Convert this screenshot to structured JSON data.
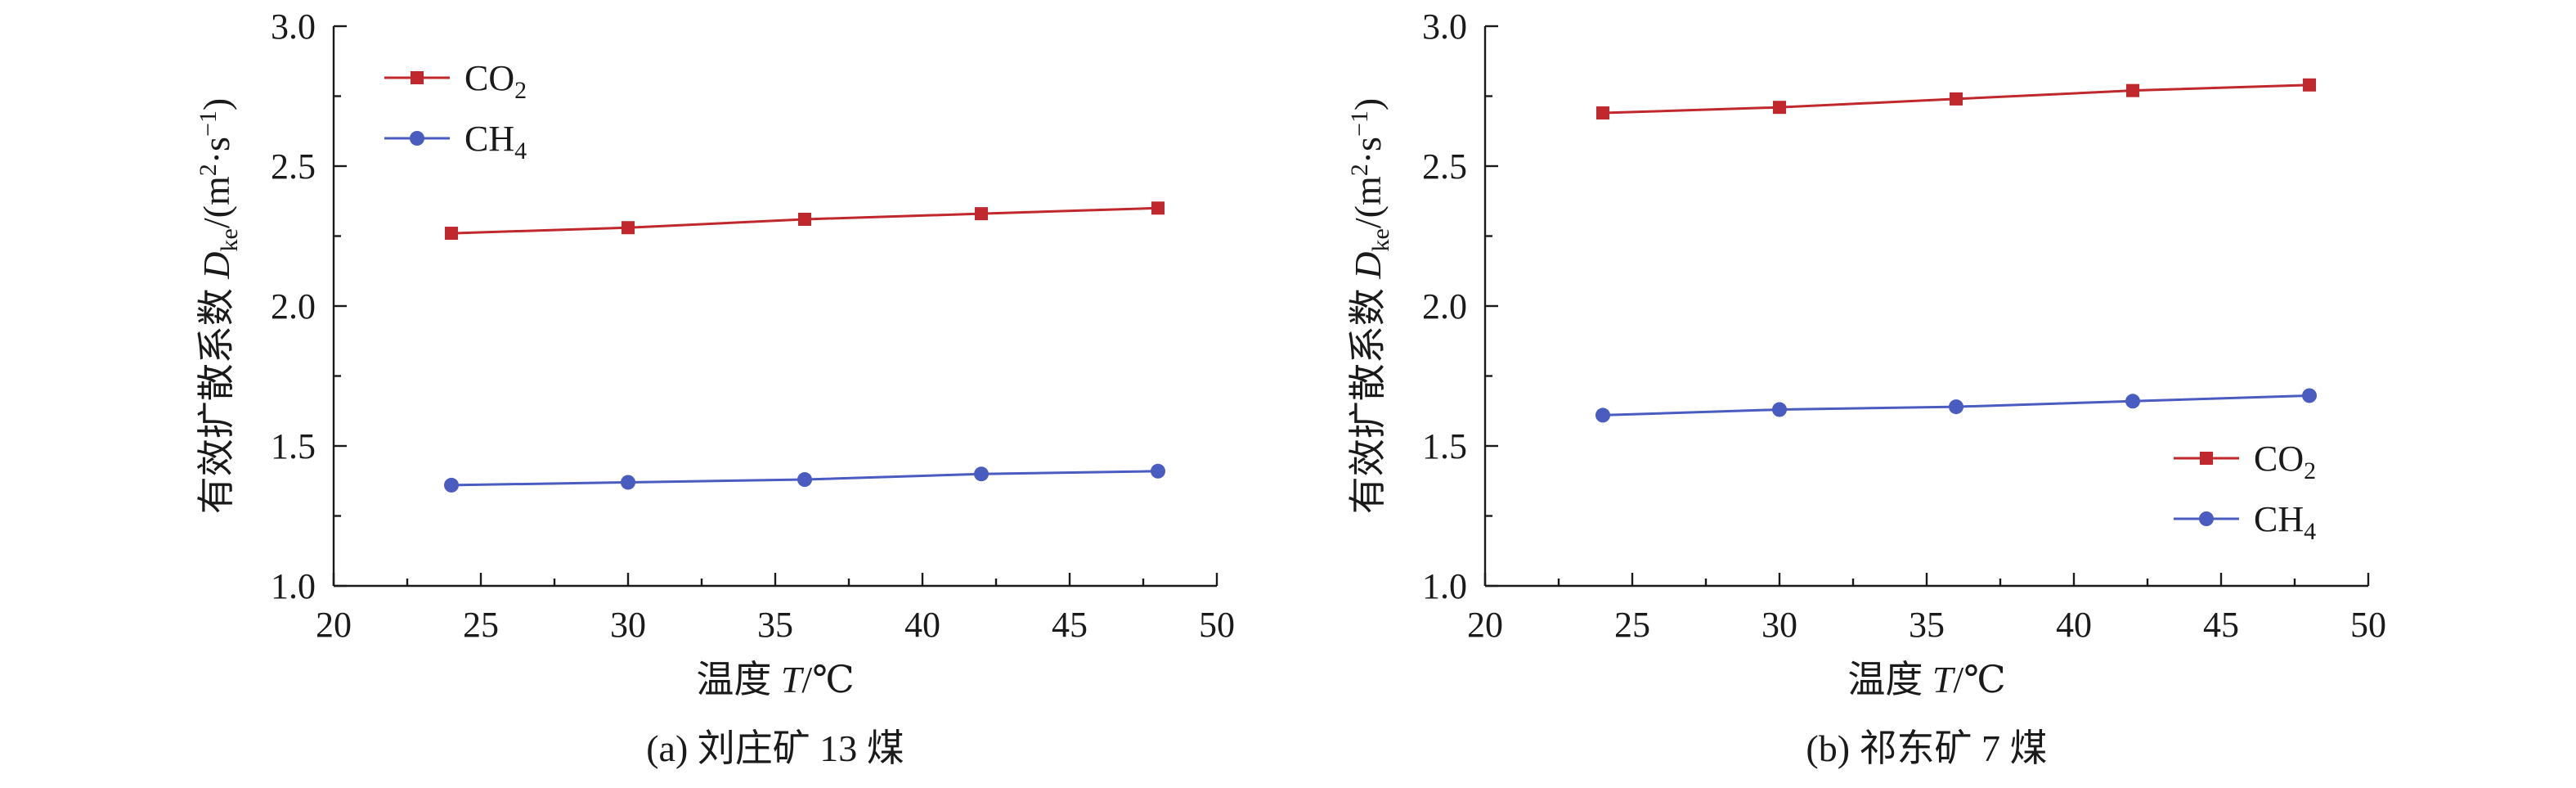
{
  "colors": {
    "co2": "#c0282d",
    "ch4": "#4a5cc0"
  },
  "chart_data": [
    {
      "type": "line",
      "caption": "(a) 刘庄矿 13 煤",
      "xlabel": {
        "main": "温度 ",
        "var": "T",
        "unit": "/℃"
      },
      "ylabel": {
        "prefix": "有效扩散系数 ",
        "var": "D",
        "sub": "ke",
        "unit_open": "/(m",
        "sup1": "2",
        "unit_mid": "·s",
        "sup2": "−1",
        "unit_close": ")"
      },
      "xlim": [
        20,
        50
      ],
      "ylim": [
        1.0,
        3.0
      ],
      "xticks": [
        "20",
        "25",
        "30",
        "35",
        "40",
        "45",
        "50"
      ],
      "yticks": [
        "1.0",
        "1.5",
        "2.0",
        "2.5",
        "3.0"
      ],
      "legend_position": "top-left",
      "x": [
        24,
        30,
        36,
        42,
        48
      ],
      "series": [
        {
          "key": "co2",
          "name": "CO",
          "name_sub": "2",
          "marker": "square",
          "values": [
            2.26,
            2.28,
            2.31,
            2.33,
            2.35
          ]
        },
        {
          "key": "ch4",
          "name": "CH",
          "name_sub": "4",
          "marker": "circle",
          "values": [
            1.36,
            1.37,
            1.38,
            1.4,
            1.41
          ]
        }
      ]
    },
    {
      "type": "line",
      "caption": "(b) 祁东矿 7 煤",
      "xlabel": {
        "main": "温度 ",
        "var": "T",
        "unit": "/℃"
      },
      "ylabel": {
        "prefix": "有效扩散系数 ",
        "var": "D",
        "sub": "ke",
        "unit_open": "/(m",
        "sup1": "2",
        "unit_mid": "·s",
        "sup2": "−1",
        "unit_close": ")"
      },
      "xlim": [
        20,
        50
      ],
      "ylim": [
        1.0,
        3.0
      ],
      "xticks": [
        "20",
        "25",
        "30",
        "35",
        "40",
        "45",
        "50"
      ],
      "yticks": [
        "1.0",
        "1.5",
        "2.0",
        "2.5",
        "3.0"
      ],
      "legend_position": "bottom-right",
      "x": [
        24,
        30,
        36,
        42,
        48
      ],
      "series": [
        {
          "key": "co2",
          "name": "CO",
          "name_sub": "2",
          "marker": "square",
          "values": [
            2.69,
            2.71,
            2.74,
            2.77,
            2.79
          ]
        },
        {
          "key": "ch4",
          "name": "CH",
          "name_sub": "4",
          "marker": "circle",
          "values": [
            1.61,
            1.63,
            1.64,
            1.66,
            1.68
          ]
        }
      ]
    }
  ]
}
